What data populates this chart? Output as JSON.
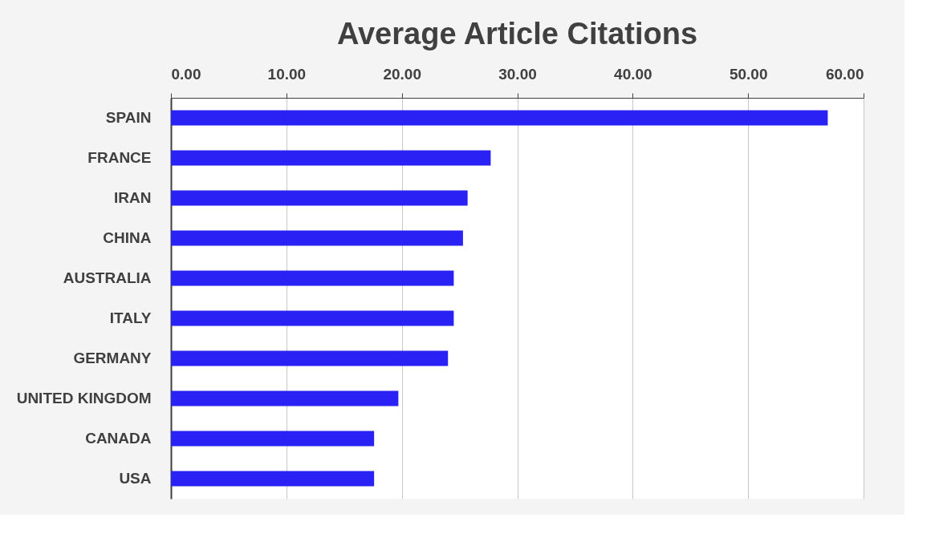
{
  "chart_data": {
    "type": "bar",
    "orientation": "horizontal",
    "title": "Average Article Citations",
    "categories": [
      "SPAIN",
      "FRANCE",
      "IRAN",
      "CHINA",
      "AUSTRALIA",
      "ITALY",
      "GERMANY",
      "UNITED KINGDOM",
      "CANADA",
      "USA"
    ],
    "values": [
      56.9,
      27.7,
      25.7,
      25.3,
      24.5,
      24.5,
      24.0,
      19.7,
      17.6,
      17.6
    ],
    "color": "#2a22f5",
    "xlim": [
      0,
      60
    ],
    "xticks": [
      {
        "value": 0,
        "label": "0.00"
      },
      {
        "value": 10,
        "label": "10.00"
      },
      {
        "value": 20,
        "label": "20.00"
      },
      {
        "value": 30,
        "label": "30.00"
      },
      {
        "value": 40,
        "label": "40.00"
      },
      {
        "value": 50,
        "label": "50.00"
      },
      {
        "value": 60,
        "label": "60.00"
      }
    ],
    "grid": "x"
  }
}
